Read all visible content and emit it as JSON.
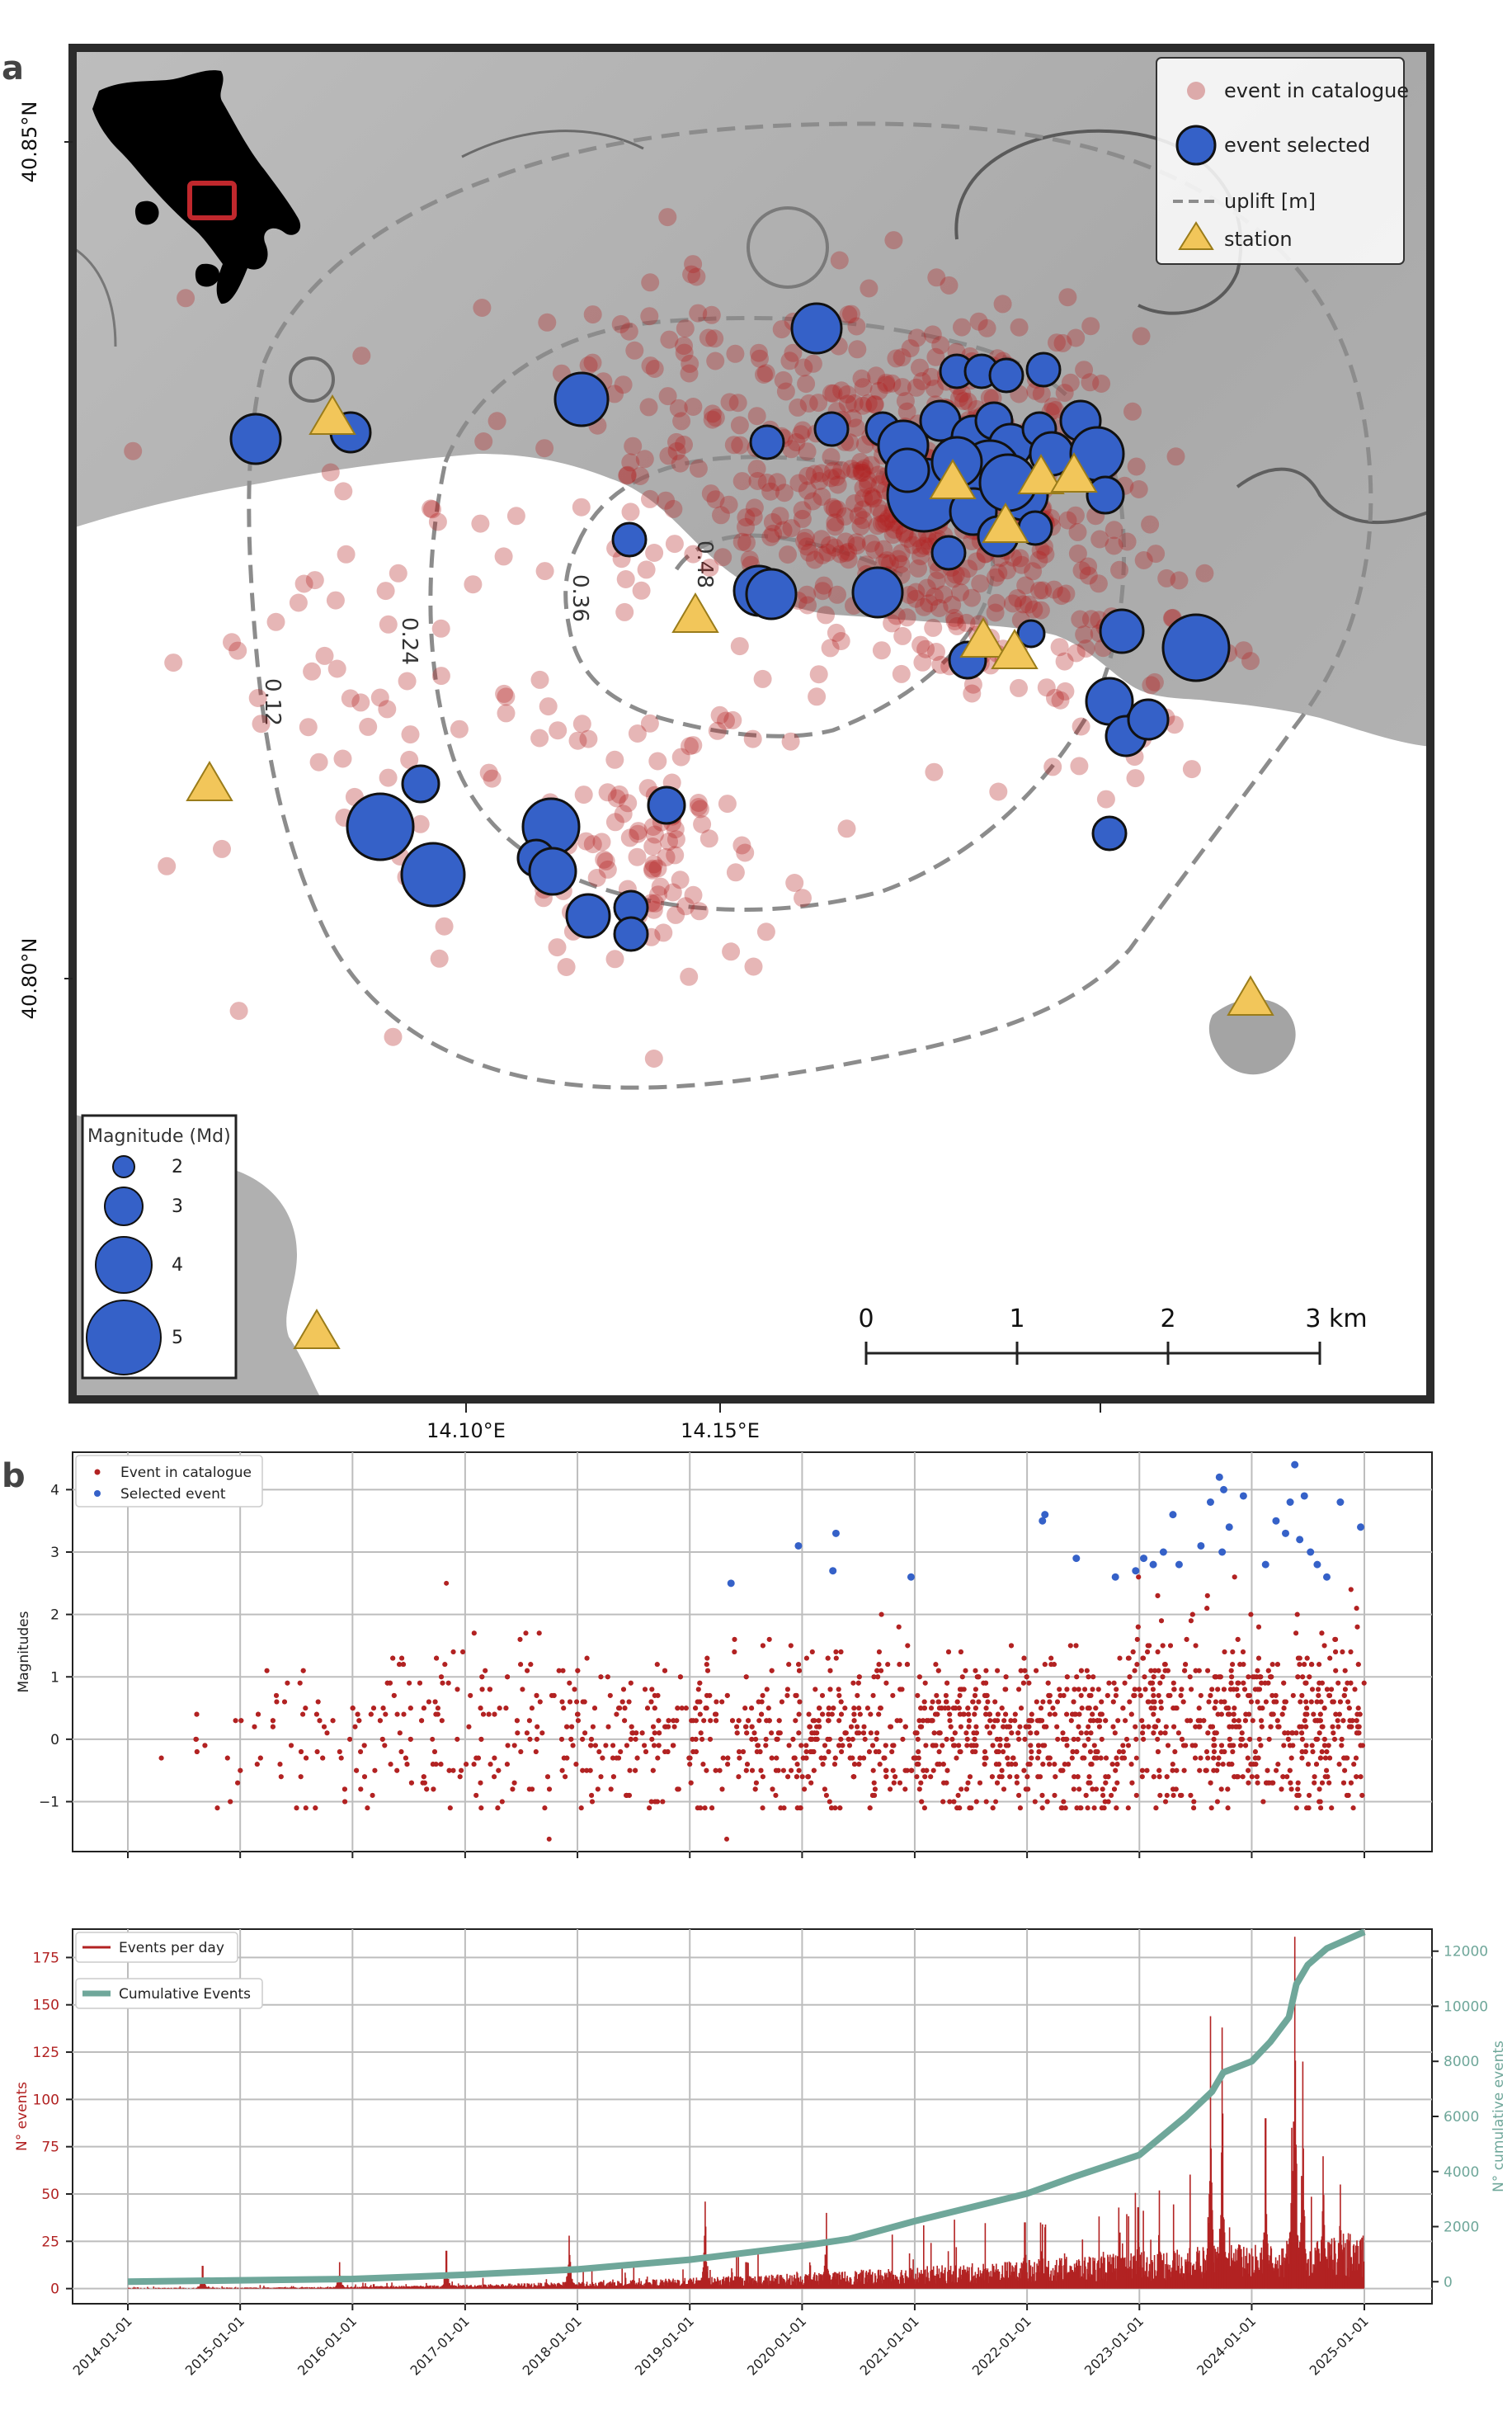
{
  "panels": {
    "a_label": "a",
    "b_label": "b"
  },
  "colors": {
    "catalogue": "#b22222",
    "selected": "#3561c8",
    "station": "#f2c65a",
    "contour": "#8c8c8c",
    "cumulative": "#6fa79a",
    "frame": "#2b2b2b",
    "land": "#b5b5b5",
    "sea": "#ffffff"
  },
  "map": {
    "lat_ticks": [
      "40.85°N",
      "40.80°N"
    ],
    "lon_ticks": [
      "14.10°E",
      "14.15°E"
    ],
    "legend": {
      "catalogue": "event in catalogue",
      "selected": "event selected",
      "uplift": "uplift [m]",
      "station": "station"
    },
    "contour_labels": [
      "0.12",
      "0.24",
      "0.36",
      "0.48"
    ],
    "magnitude_legend": {
      "title": "Magnitude (Md)",
      "values": [
        "2",
        "3",
        "4",
        "5"
      ]
    },
    "scale_bar": {
      "ticks": [
        "0",
        "1",
        "2"
      ],
      "last": "3 km"
    },
    "inset": "italy-locator-inset",
    "stations_count": 11
  },
  "chart_data": [
    {
      "type": "scatter",
      "title": "",
      "xlabel": "",
      "ylabel": "Magnitudes",
      "x_range": [
        "2014-01-01",
        "2025-01-01"
      ],
      "ylim": [
        -1.8,
        4.6
      ],
      "y_ticks": [
        "4",
        "3",
        "2",
        "1",
        "0",
        "−1"
      ],
      "grid": true,
      "legend_position": "top-left",
      "series": [
        {
          "name": "Event in catalogue",
          "color": "#b22222",
          "points_note": "dense cloud of catalogue events, magnitudes mostly between -1.1 and 2",
          "notable": [
            {
              "x": "2016-11-01",
              "y": 2.5
            },
            {
              "x": "2017-10-01",
              "y": -1.6
            },
            {
              "x": "2019-05-01",
              "y": -1.6
            }
          ]
        },
        {
          "name": "Selected event",
          "color": "#3561c8",
          "points": [
            {
              "x": "2019-05-15",
              "y": 2.5
            },
            {
              "x": "2019-12-20",
              "y": 3.1
            },
            {
              "x": "2020-04-10",
              "y": 2.7
            },
            {
              "x": "2020-04-20",
              "y": 3.3
            },
            {
              "x": "2020-12-20",
              "y": 2.6
            },
            {
              "x": "2022-02-20",
              "y": 3.5
            },
            {
              "x": "2022-02-28",
              "y": 3.6
            },
            {
              "x": "2022-06-10",
              "y": 2.9
            },
            {
              "x": "2022-10-15",
              "y": 2.6
            },
            {
              "x": "2022-12-20",
              "y": 2.7
            },
            {
              "x": "2023-01-15",
              "y": 2.9
            },
            {
              "x": "2023-02-15",
              "y": 2.8
            },
            {
              "x": "2023-03-20",
              "y": 3.0
            },
            {
              "x": "2023-04-20",
              "y": 3.6
            },
            {
              "x": "2023-05-10",
              "y": 2.8
            },
            {
              "x": "2023-07-20",
              "y": 3.1
            },
            {
              "x": "2023-08-20",
              "y": 3.8
            },
            {
              "x": "2023-09-18",
              "y": 4.2
            },
            {
              "x": "2023-09-27",
              "y": 3.0
            },
            {
              "x": "2023-10-02",
              "y": 4.0
            },
            {
              "x": "2023-10-20",
              "y": 3.4
            },
            {
              "x": "2023-12-05",
              "y": 3.9
            },
            {
              "x": "2024-02-15",
              "y": 2.8
            },
            {
              "x": "2024-03-20",
              "y": 3.5
            },
            {
              "x": "2024-04-20",
              "y": 3.3
            },
            {
              "x": "2024-05-05",
              "y": 3.8
            },
            {
              "x": "2024-05-20",
              "y": 4.4
            },
            {
              "x": "2024-06-05",
              "y": 3.2
            },
            {
              "x": "2024-06-20",
              "y": 3.9
            },
            {
              "x": "2024-07-10",
              "y": 3.0
            },
            {
              "x": "2024-08-01",
              "y": 2.8
            },
            {
              "x": "2024-09-01",
              "y": 2.6
            },
            {
              "x": "2024-10-15",
              "y": 3.8
            },
            {
              "x": "2024-12-20",
              "y": 3.4
            }
          ]
        }
      ]
    },
    {
      "type": "line",
      "title": "",
      "xlabel": "",
      "ylabel": "N° events",
      "ylabel_right": "N° cumulative events",
      "x_ticks": [
        "2014-01-01",
        "2015-01-01",
        "2016-01-01",
        "2017-01-01",
        "2018-01-01",
        "2019-01-01",
        "2020-01-01",
        "2021-01-01",
        "2022-01-01",
        "2023-01-01",
        "2024-01-01",
        "2025-01-01"
      ],
      "ylim": [
        -8,
        190
      ],
      "y_ticks": [
        "175",
        "150",
        "125",
        "100",
        "75",
        "50",
        "25",
        "0"
      ],
      "ylim_right": [
        -800,
        12800
      ],
      "y_ticks_right": [
        "12000",
        "10000",
        "8000",
        "6000",
        "4000",
        "2000",
        "0"
      ],
      "grid": true,
      "legend_position": "top-left",
      "series": [
        {
          "name": "Events per day",
          "color": "#b22222",
          "axis": "left",
          "peaks": [
            {
              "x": "2014-09-01",
              "y": 12
            },
            {
              "x": "2015-11-20",
              "y": 14
            },
            {
              "x": "2016-11-01",
              "y": 20
            },
            {
              "x": "2017-12-05",
              "y": 28
            },
            {
              "x": "2019-02-20",
              "y": 46
            },
            {
              "x": "2020-03-20",
              "y": 40
            },
            {
              "x": "2021-12-25",
              "y": 35
            },
            {
              "x": "2022-12-28",
              "y": 43
            },
            {
              "x": "2023-08-20",
              "y": 144
            },
            {
              "x": "2023-09-27",
              "y": 138
            },
            {
              "x": "2024-02-15",
              "y": 90
            },
            {
              "x": "2024-05-10",
              "y": 85
            },
            {
              "x": "2024-05-20",
              "y": 186
            },
            {
              "x": "2024-06-15",
              "y": 120
            },
            {
              "x": "2024-08-20",
              "y": 70
            },
            {
              "x": "2024-10-15",
              "y": 55
            }
          ]
        },
        {
          "name": "Cumulative Events",
          "color": "#6fa79a",
          "axis": "right",
          "points": [
            {
              "x": "2014-01-01",
              "y": 0
            },
            {
              "x": "2015-01-01",
              "y": 50
            },
            {
              "x": "2016-01-01",
              "y": 100
            },
            {
              "x": "2017-01-01",
              "y": 250
            },
            {
              "x": "2018-01-01",
              "y": 450
            },
            {
              "x": "2019-01-01",
              "y": 800
            },
            {
              "x": "2020-01-01",
              "y": 1300
            },
            {
              "x": "2020-06-01",
              "y": 1550
            },
            {
              "x": "2021-01-01",
              "y": 2200
            },
            {
              "x": "2022-01-01",
              "y": 3200
            },
            {
              "x": "2022-06-01",
              "y": 3800
            },
            {
              "x": "2023-01-01",
              "y": 4600
            },
            {
              "x": "2023-06-01",
              "y": 6000
            },
            {
              "x": "2023-08-25",
              "y": 6900
            },
            {
              "x": "2023-10-01",
              "y": 7600
            },
            {
              "x": "2024-01-01",
              "y": 8000
            },
            {
              "x": "2024-03-01",
              "y": 8700
            },
            {
              "x": "2024-05-01",
              "y": 9600
            },
            {
              "x": "2024-05-25",
              "y": 10800
            },
            {
              "x": "2024-07-01",
              "y": 11500
            },
            {
              "x": "2024-09-01",
              "y": 12100
            },
            {
              "x": "2024-11-01",
              "y": 12400
            },
            {
              "x": "2025-01-01",
              "y": 12700
            }
          ]
        }
      ]
    }
  ]
}
